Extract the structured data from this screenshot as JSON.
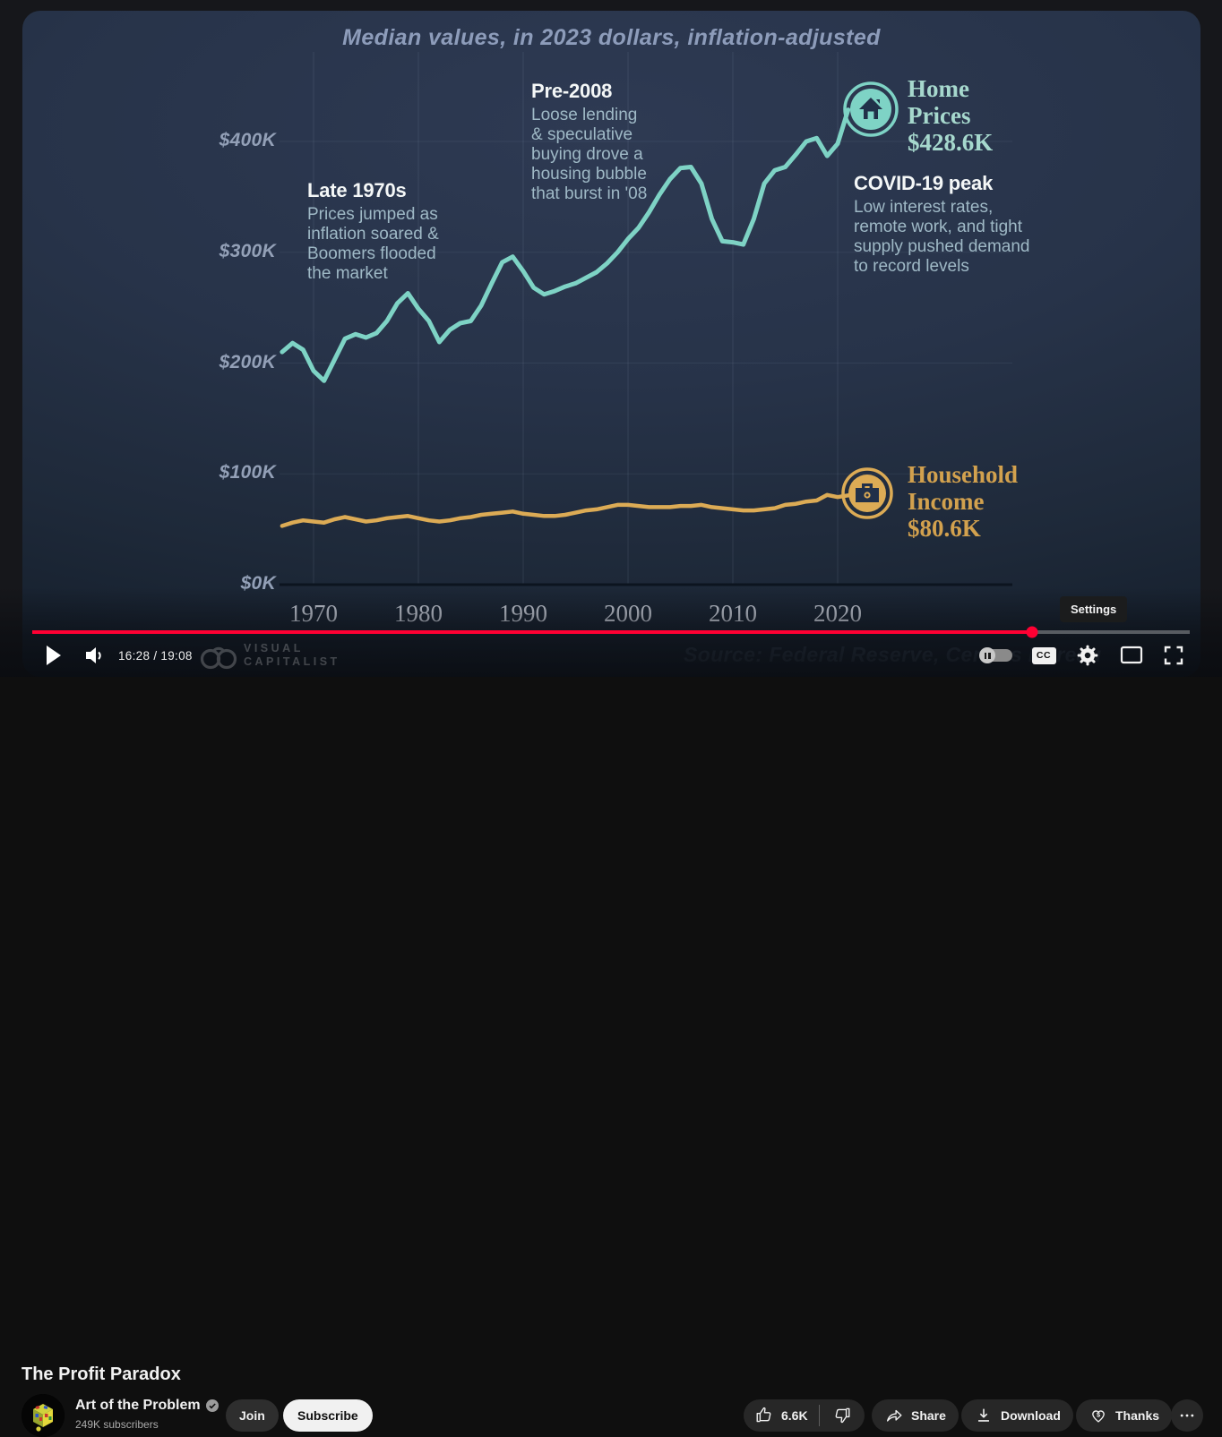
{
  "player": {
    "time_display": "16:28 / 19:08",
    "tooltip_label": "Settings",
    "cc_label": "CC",
    "watermark": {
      "line1": "VISUAL",
      "line2": "CAPITALIST"
    },
    "progress_percent": 86.4,
    "colors": {
      "progress": "#ff0033"
    }
  },
  "chart_data": {
    "type": "line",
    "title": "Median values, in 2023 dollars, inflation-adjusted",
    "source": "Source: Federal Reserve, Census Bureau",
    "grid": true,
    "x_range": [
      1967,
      2023
    ],
    "y_range": [
      0,
      440
    ],
    "x_ticks": [
      1970,
      1980,
      1990,
      2000,
      2010,
      2020
    ],
    "y_ticks": [
      {
        "label": "$400K",
        "value": 400
      },
      {
        "label": "$300K",
        "value": 300
      },
      {
        "label": "$200K",
        "value": 200
      },
      {
        "label": "$100K",
        "value": 100
      },
      {
        "label": "$0K",
        "value": 0
      }
    ],
    "series": [
      {
        "name": "Home Prices",
        "color": "#7ed3c5",
        "end_value": "$428.6K",
        "end_label": "Home\nPrices\n$428.6K",
        "icon": "house-icon",
        "points": [
          [
            1967,
            210
          ],
          [
            1968,
            218
          ],
          [
            1969,
            212
          ],
          [
            1970,
            193
          ],
          [
            1971,
            184
          ],
          [
            1972,
            203
          ],
          [
            1973,
            222
          ],
          [
            1974,
            226
          ],
          [
            1975,
            223
          ],
          [
            1976,
            227
          ],
          [
            1977,
            238
          ],
          [
            1978,
            254
          ],
          [
            1979,
            263
          ],
          [
            1980,
            249
          ],
          [
            1981,
            238
          ],
          [
            1982,
            219
          ],
          [
            1983,
            230
          ],
          [
            1984,
            236
          ],
          [
            1985,
            238
          ],
          [
            1986,
            252
          ],
          [
            1987,
            272
          ],
          [
            1988,
            291
          ],
          [
            1989,
            296
          ],
          [
            1990,
            283
          ],
          [
            1991,
            268
          ],
          [
            1992,
            262
          ],
          [
            1993,
            265
          ],
          [
            1994,
            269
          ],
          [
            1995,
            272
          ],
          [
            1996,
            277
          ],
          [
            1997,
            282
          ],
          [
            1998,
            290
          ],
          [
            1999,
            300
          ],
          [
            2000,
            312
          ],
          [
            2001,
            322
          ],
          [
            2002,
            336
          ],
          [
            2003,
            352
          ],
          [
            2004,
            366
          ],
          [
            2005,
            376
          ],
          [
            2006,
            377
          ],
          [
            2007,
            362
          ],
          [
            2008,
            330
          ],
          [
            2009,
            310
          ],
          [
            2010,
            309
          ],
          [
            2011,
            307
          ],
          [
            2012,
            330
          ],
          [
            2013,
            362
          ],
          [
            2014,
            374
          ],
          [
            2015,
            377
          ],
          [
            2016,
            388
          ],
          [
            2017,
            400
          ],
          [
            2018,
            403
          ],
          [
            2019,
            387
          ],
          [
            2020,
            398
          ],
          [
            2021,
            428.6
          ]
        ]
      },
      {
        "name": "Household Income",
        "color": "#dcab55",
        "end_value": "$80.6K",
        "end_label": "Household\nIncome\n$80.6K",
        "icon": "briefcase-icon",
        "points": [
          [
            1967,
            53
          ],
          [
            1968,
            56
          ],
          [
            1969,
            58
          ],
          [
            1970,
            57
          ],
          [
            1971,
            56
          ],
          [
            1972,
            59
          ],
          [
            1973,
            61
          ],
          [
            1974,
            59
          ],
          [
            1975,
            57
          ],
          [
            1976,
            58
          ],
          [
            1977,
            60
          ],
          [
            1978,
            61
          ],
          [
            1979,
            62
          ],
          [
            1980,
            60
          ],
          [
            1981,
            58
          ],
          [
            1982,
            57
          ],
          [
            1983,
            58
          ],
          [
            1984,
            60
          ],
          [
            1985,
            61
          ],
          [
            1986,
            63
          ],
          [
            1987,
            64
          ],
          [
            1988,
            65
          ],
          [
            1989,
            66
          ],
          [
            1990,
            64
          ],
          [
            1991,
            63
          ],
          [
            1992,
            62
          ],
          [
            1993,
            62
          ],
          [
            1994,
            63
          ],
          [
            1995,
            65
          ],
          [
            1996,
            67
          ],
          [
            1997,
            68
          ],
          [
            1998,
            70
          ],
          [
            1999,
            72
          ],
          [
            2000,
            72
          ],
          [
            2001,
            71
          ],
          [
            2002,
            70
          ],
          [
            2003,
            70
          ],
          [
            2004,
            70
          ],
          [
            2005,
            71
          ],
          [
            2006,
            71
          ],
          [
            2007,
            72
          ],
          [
            2008,
            70
          ],
          [
            2009,
            69
          ],
          [
            2010,
            68
          ],
          [
            2011,
            67
          ],
          [
            2012,
            67
          ],
          [
            2013,
            68
          ],
          [
            2014,
            69
          ],
          [
            2015,
            72
          ],
          [
            2016,
            73
          ],
          [
            2017,
            75
          ],
          [
            2018,
            76
          ],
          [
            2019,
            81
          ],
          [
            2020,
            79
          ],
          [
            2021,
            80.6
          ]
        ]
      }
    ],
    "annotations": [
      {
        "title": "Late 1970s",
        "body": "Prices jumped as\ninflation soared &\nBoomers flooded\nthe market"
      },
      {
        "title": "Pre-2008",
        "body": "Loose lending\n& speculative\nbuying drove a\nhousing bubble\nthat burst in '08"
      },
      {
        "title": "COVID-19 peak",
        "body": "Low interest rates,\nremote work, and tight\nsupply pushed demand\nto record levels"
      }
    ]
  },
  "below": {
    "video_title": "The Profit Paradox",
    "channel": {
      "name": "Art of the Problem",
      "subscribers": "249K subscribers",
      "join_label": "Join",
      "subscribe_label": "Subscribe"
    },
    "actions": {
      "like_count": "6.6K",
      "share_label": "Share",
      "download_label": "Download",
      "thanks_label": "Thanks"
    }
  }
}
